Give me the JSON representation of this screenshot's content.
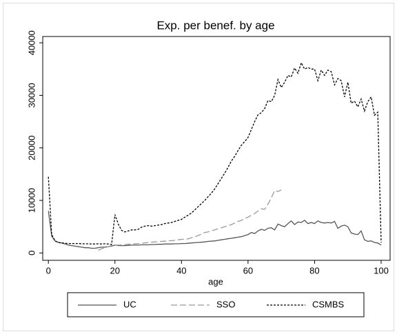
{
  "chart_data": {
    "type": "line",
    "title": "Exp. per benef. by age",
    "x_label": "age",
    "x": [
      0,
      1,
      2,
      3,
      4,
      5,
      6,
      7,
      8,
      9,
      10,
      11,
      12,
      13,
      14,
      15,
      16,
      17,
      18,
      19,
      20,
      21,
      22,
      23,
      24,
      25,
      26,
      27,
      28,
      29,
      30,
      31,
      32,
      33,
      34,
      35,
      36,
      37,
      38,
      39,
      40,
      41,
      42,
      43,
      44,
      45,
      46,
      47,
      48,
      49,
      50,
      51,
      52,
      53,
      54,
      55,
      56,
      57,
      58,
      59,
      60,
      61,
      62,
      63,
      64,
      65,
      66,
      67,
      68,
      69,
      70,
      71,
      72,
      73,
      74,
      75,
      76,
      77,
      78,
      79,
      80,
      81,
      82,
      83,
      84,
      85,
      86,
      87,
      88,
      89,
      90,
      91,
      92,
      93,
      94,
      95,
      96,
      97,
      98,
      99,
      100
    ],
    "series": [
      {
        "name": "UC",
        "color": "#555555",
        "dash": "solid",
        "values": [
          8000,
          3200,
          2300,
          2000,
          1900,
          1700,
          1500,
          1400,
          1300,
          1200,
          1100,
          1000,
          1000,
          900,
          900,
          1000,
          1100,
          1100,
          1200,
          1300,
          1500,
          1400,
          1400,
          1400,
          1450,
          1500,
          1500,
          1500,
          1550,
          1550,
          1550,
          1600,
          1600,
          1650,
          1650,
          1700,
          1700,
          1700,
          1750,
          1750,
          1800,
          1800,
          1850,
          1900,
          1950,
          2000,
          2050,
          2100,
          2200,
          2250,
          2300,
          2400,
          2500,
          2600,
          2700,
          2800,
          2900,
          3000,
          3100,
          3300,
          3500,
          3900,
          3700,
          4200,
          4500,
          4300,
          4700,
          4800,
          4400,
          5500,
          5200,
          5000,
          5600,
          6100,
          5400,
          5900,
          5800,
          6200,
          5600,
          5800,
          5600,
          6100,
          5800,
          5700,
          5800,
          5700,
          6000,
          4700,
          5100,
          5300,
          5000,
          3800,
          3600,
          3500,
          4200,
          2500,
          2200,
          2300,
          2000,
          1900,
          1500
        ]
      },
      {
        "name": "SSO",
        "color": "#999999",
        "dash": "long",
        "values": [
          null,
          null,
          null,
          null,
          null,
          null,
          null,
          null,
          null,
          null,
          null,
          null,
          null,
          null,
          null,
          500,
          800,
          1000,
          1200,
          1400,
          1500,
          1500,
          1550,
          1600,
          1650,
          1700,
          1750,
          1800,
          1850,
          1900,
          2000,
          2050,
          2100,
          2150,
          2200,
          2250,
          2300,
          2350,
          2400,
          2500,
          2600,
          2600,
          2700,
          2900,
          3100,
          3300,
          3600,
          3900,
          4000,
          4200,
          4400,
          4600,
          4800,
          5000,
          5200,
          5400,
          5700,
          6000,
          6200,
          6600,
          6800,
          7200,
          7500,
          8000,
          8400,
          8300,
          9300,
          10500,
          11900,
          11700,
          12000,
          null,
          null,
          null,
          null,
          null,
          null,
          null,
          null,
          null,
          null,
          null,
          null,
          null,
          null,
          null,
          null,
          null,
          null,
          null,
          null,
          null,
          null,
          null,
          null,
          null,
          null,
          null,
          null,
          null,
          null
        ]
      },
      {
        "name": "CSMBS",
        "color": "#000000",
        "dash": "short",
        "values": [
          14500,
          3500,
          2300,
          2000,
          1900,
          1850,
          1800,
          1800,
          1800,
          1800,
          1750,
          1750,
          1750,
          1700,
          1700,
          1750,
          1700,
          1750,
          1700,
          1600,
          7300,
          5500,
          4300,
          4000,
          4200,
          4400,
          4400,
          4500,
          4900,
          5100,
          5200,
          5100,
          5200,
          5300,
          5400,
          5600,
          5700,
          5800,
          6000,
          6200,
          6400,
          6800,
          7200,
          7600,
          8200,
          8800,
          9400,
          10000,
          10700,
          11400,
          12200,
          13200,
          14200,
          15200,
          16300,
          17500,
          18400,
          19500,
          20500,
          21200,
          22000,
          23500,
          25000,
          26300,
          26700,
          27500,
          29000,
          28800,
          30000,
          33000,
          31500,
          32500,
          33800,
          33500,
          35200,
          34200,
          36200,
          35000,
          35300,
          35000,
          35000,
          32800,
          34800,
          33800,
          34800,
          34500,
          32000,
          33200,
          32800,
          29700,
          32500,
          28500,
          28900,
          27800,
          29300,
          27000,
          28800,
          29700,
          26200,
          26800,
          2000
        ]
      }
    ],
    "xlim": [
      -1.7,
      102.7
    ],
    "xticks": [
      0,
      20,
      40,
      60,
      80,
      100
    ],
    "ylim": [
      -1400,
      41200
    ],
    "yticks": [
      0,
      10000,
      20000,
      30000,
      40000
    ],
    "legend": "bottom"
  }
}
